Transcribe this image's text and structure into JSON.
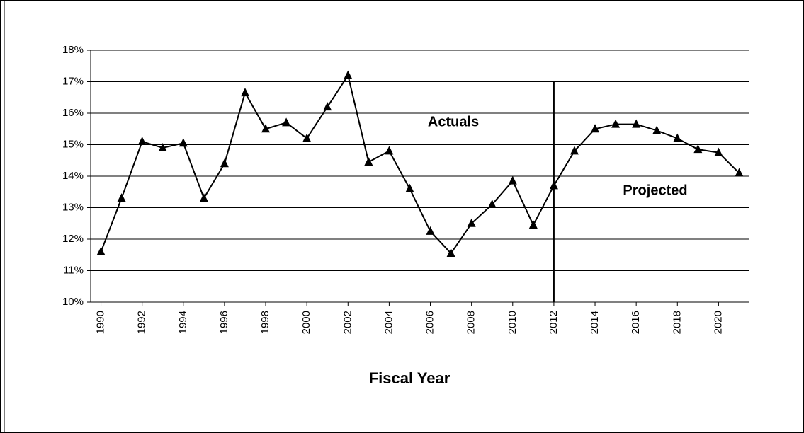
{
  "chart_data": {
    "type": "line",
    "x_label": "Fiscal Year",
    "annotations": [
      "Actuals",
      "Projected"
    ],
    "x": [
      1990,
      1991,
      1992,
      1993,
      1994,
      1995,
      1996,
      1997,
      1998,
      1999,
      2000,
      2001,
      2002,
      2003,
      2004,
      2005,
      2006,
      2007,
      2008,
      2009,
      2010,
      2011,
      2012,
      2013,
      2014,
      2015,
      2016,
      2017,
      2018,
      2019,
      2020,
      2021
    ],
    "series": [
      {
        "color": "#000000",
        "marker": "triangle",
        "values": [
          11.6,
          13.3,
          15.1,
          14.9,
          15.05,
          13.3,
          14.4,
          16.65,
          15.5,
          15.7,
          15.2,
          16.2,
          17.2,
          14.45,
          14.8,
          13.6,
          12.25,
          11.55,
          12.5,
          13.1,
          13.85,
          12.45,
          13.7,
          14.8,
          15.5,
          15.65,
          15.65,
          15.45,
          15.2,
          14.85,
          14.75,
          14.1
        ]
      }
    ],
    "divider_x": 2012,
    "xlim": [
      1989.5,
      2021.5
    ],
    "xticks": [
      1990,
      1992,
      1994,
      1996,
      1998,
      2000,
      2002,
      2004,
      2006,
      2008,
      2010,
      2012,
      2014,
      2016,
      2018,
      2020
    ],
    "ylim": [
      10,
      18
    ],
    "yticks": [
      {
        "value": 10,
        "label": "10%"
      },
      {
        "value": 11,
        "label": "11%"
      },
      {
        "value": 12,
        "label": "12%"
      },
      {
        "value": 13,
        "label": "13%"
      },
      {
        "value": 14,
        "label": "14%"
      },
      {
        "value": 15,
        "label": "15%"
      },
      {
        "value": 16,
        "label": "16%"
      },
      {
        "value": 17,
        "label": "17%"
      },
      {
        "value": 18,
        "label": "18%"
      }
    ],
    "grid": true
  }
}
